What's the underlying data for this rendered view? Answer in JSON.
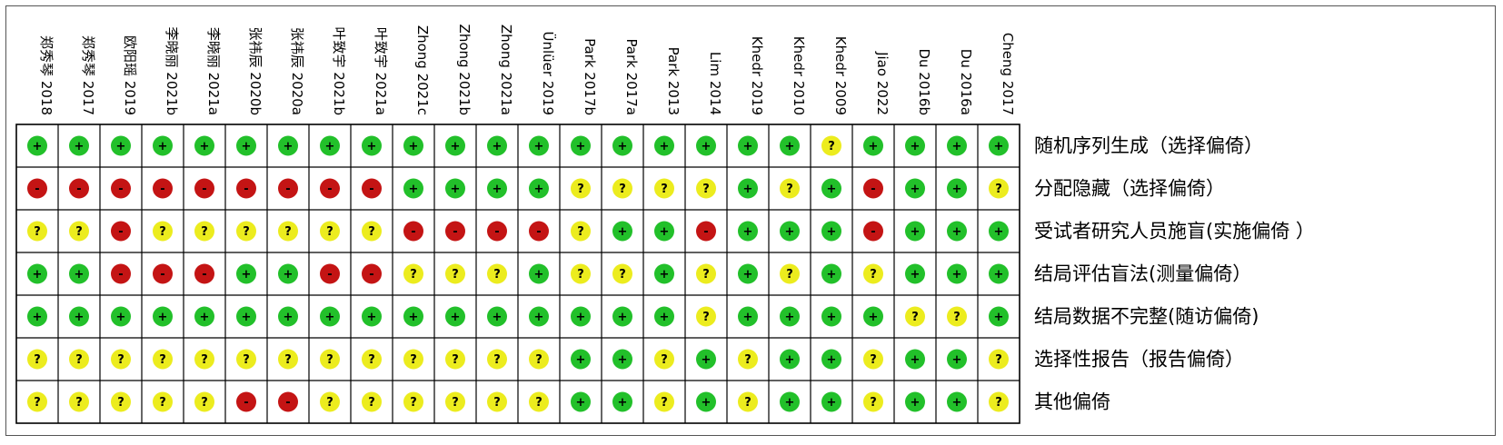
{
  "figure": {
    "title": "",
    "studies": [
      "郑秀琴 2018",
      "郑秀琴 2017",
      "欧阳瑶 2019",
      "李晓丽 2021b",
      "李晓丽 2021a",
      "张祎辰 2020b",
      "张祎辰 2020a",
      "叶致宇 2021b",
      "叶致宇 2021a",
      "Zhong 2021c",
      "Zhong 2021b",
      "Zhong 2021a",
      "Ünlüer 2019",
      "Park 2017b",
      "Park 2017a",
      "Park 2013",
      "Lim 2014",
      "Khedr 2019",
      "Khedr 2010",
      "Khedr 2009",
      "Jiao 2022",
      "Du 2016b",
      "Du 2016a",
      "Cheng 2017"
    ],
    "domains": [
      "随机序列生成（选择偏倚）",
      "分配隐藏（选择偏倚）",
      "受试者研究人员施盲(实施偏倚 ）",
      "结局评估盲法(测量偏倚）",
      "结局数据不完整(随访偏倚)",
      "选择性报告（报告偏倚）",
      "其他偏倚"
    ],
    "symbols": {
      "low": "+",
      "unclear": "?",
      "high": "-"
    },
    "colors": {
      "low": "#22c02a",
      "unclear": "#ecec1e",
      "high": "#c41414",
      "grid": "#000000"
    },
    "ratings": [
      [
        "+",
        "+",
        "+",
        "+",
        "+",
        "+",
        "+",
        "+",
        "+",
        "+",
        "+",
        "+",
        "+",
        "+",
        "+",
        "+",
        "+",
        "+",
        "+",
        "?",
        "+",
        "+",
        "+",
        "+"
      ],
      [
        "-",
        "-",
        "-",
        "-",
        "-",
        "-",
        "-",
        "-",
        "-",
        "+",
        "+",
        "+",
        "+",
        "?",
        "?",
        "?",
        "?",
        "+",
        "?",
        "+",
        "-",
        "+",
        "+",
        "?"
      ],
      [
        "?",
        "?",
        "-",
        "?",
        "?",
        "?",
        "?",
        "?",
        "?",
        "-",
        "-",
        "-",
        "-",
        "?",
        "+",
        "+",
        "-",
        "+",
        "+",
        "+",
        "-",
        "+",
        "+",
        "+"
      ],
      [
        "+",
        "+",
        "-",
        "-",
        "-",
        "+",
        "+",
        "-",
        "-",
        "?",
        "?",
        "?",
        "+",
        "?",
        "?",
        "+",
        "?",
        "+",
        "?",
        "+",
        "?",
        "+",
        "+",
        "+"
      ],
      [
        "+",
        "+",
        "+",
        "+",
        "+",
        "+",
        "+",
        "+",
        "+",
        "+",
        "+",
        "+",
        "+",
        "+",
        "+",
        "+",
        "?",
        "+",
        "+",
        "+",
        "+",
        "?",
        "?",
        "+"
      ],
      [
        "?",
        "?",
        "?",
        "?",
        "?",
        "?",
        "?",
        "?",
        "?",
        "?",
        "?",
        "?",
        "?",
        "+",
        "+",
        "?",
        "+",
        "?",
        "+",
        "+",
        "?",
        "+",
        "+",
        "?"
      ],
      [
        "?",
        "?",
        "?",
        "?",
        "?",
        "-",
        "-",
        "?",
        "?",
        "?",
        "?",
        "?",
        "?",
        "+",
        "+",
        "?",
        "+",
        "?",
        "+",
        "+",
        "?",
        "+",
        "+",
        "?"
      ]
    ]
  }
}
